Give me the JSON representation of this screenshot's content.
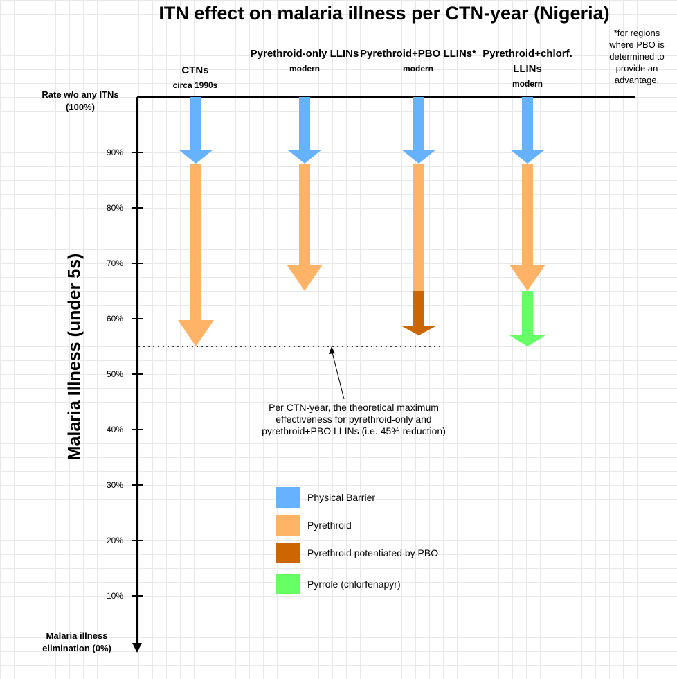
{
  "title": "ITN effect on malaria illness per CTN-year (Nigeria)",
  "footnote": "*for regions where PBO is determined to provide an advantage.",
  "columns": [
    {
      "name": "CTNs",
      "sub": "circa 1990s"
    },
    {
      "name": "Pyrethroid-only LLINs",
      "sub": "modern"
    },
    {
      "name": "Pyrethroid+PBO LLINs*",
      "sub": "modern"
    },
    {
      "name": "Pyrethroid+chlorf. LLINs",
      "sub": "modern"
    }
  ],
  "axis": {
    "top_label": "Rate w/o any ITNs (100%)",
    "bottom_label": "Malaria illness elimination (0%)",
    "title": "Malaria Illness (under 5s)",
    "ticks": [
      "90%",
      "80%",
      "70%",
      "60%",
      "50%",
      "40%",
      "30%",
      "20%",
      "10%"
    ]
  },
  "annotation": "Per CTN-year, the theoretical maximum effectiveness for pyrethroid-only and pyrethroid+PBO LLINs (i.e. 45% reduction)",
  "legend": [
    {
      "label": "Physical Barrier",
      "color": "#66b2ff"
    },
    {
      "label": "Pyrethroid",
      "color": "#ffb366"
    },
    {
      "label": "Pyrethroid potentiated by PBO",
      "color": "#cc6600"
    },
    {
      "label": "Pyrrole (chlorfenapyr)",
      "color": "#66ff66"
    }
  ],
  "effects": [
    {
      "column": "CTNs",
      "segments": [
        {
          "component": "Physical Barrier",
          "from_pct": 100,
          "to_pct": 88
        },
        {
          "component": "Pyrethroid",
          "from_pct": 88,
          "to_pct": 55
        }
      ]
    },
    {
      "column": "Pyrethroid-only LLINs",
      "segments": [
        {
          "component": "Physical Barrier",
          "from_pct": 100,
          "to_pct": 88
        },
        {
          "component": "Pyrethroid",
          "from_pct": 88,
          "to_pct": 65
        }
      ]
    },
    {
      "column": "Pyrethroid+PBO LLINs*",
      "segments": [
        {
          "component": "Physical Barrier",
          "from_pct": 100,
          "to_pct": 88
        },
        {
          "component": "Pyrethroid",
          "from_pct": 88,
          "to_pct": 65
        },
        {
          "component": "Pyrethroid potentiated by PBO",
          "from_pct": 65,
          "to_pct": 57
        }
      ]
    },
    {
      "column": "Pyrethroid+chlorf. LLINs",
      "segments": [
        {
          "component": "Physical Barrier",
          "from_pct": 100,
          "to_pct": 88
        },
        {
          "component": "Pyrethroid",
          "from_pct": 88,
          "to_pct": 65
        },
        {
          "component": "Pyrrole (chlorfenapyr)",
          "from_pct": 65,
          "to_pct": 55
        }
      ]
    }
  ],
  "max_effect_line_pct": 55
}
